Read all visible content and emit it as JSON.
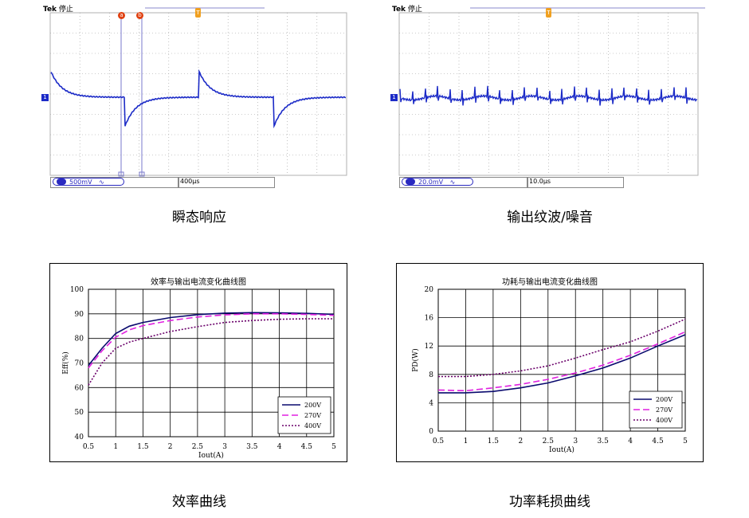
{
  "scope1": {
    "brand": "Tek",
    "state": "停止",
    "marker_a": "a",
    "marker_b": "b",
    "marker_t": "T",
    "channel": "1",
    "volts_div": "500mV",
    "coupling": "∿",
    "timebase": "400μs",
    "caption": "瞬态响应",
    "trace_color": "#1c2bc7"
  },
  "scope2": {
    "brand": "Tek",
    "state": "停止",
    "marker_t": "T",
    "channel": "1",
    "volts_div": "20.0mV",
    "coupling": "∿",
    "timebase": "10.0μs",
    "caption": "输出纹波/噪音",
    "trace_color": "#1c2bc7"
  },
  "chart_data": [
    {
      "type": "line",
      "title": "效率与输出电流变化曲线图",
      "xlabel": "Iout(A)",
      "ylabel": "Eff(%)",
      "xlim": [
        0.5,
        5
      ],
      "ylim": [
        40,
        100
      ],
      "x_ticks": [
        "0.5",
        "1",
        "1.5",
        "2",
        "2.5",
        "3",
        "3.5",
        "4",
        "4.5",
        "5"
      ],
      "y_ticks": [
        "40",
        "50",
        "60",
        "70",
        "80",
        "90",
        "100"
      ],
      "x": [
        0.5,
        0.75,
        1,
        1.25,
        1.5,
        2,
        2.5,
        3,
        3.5,
        4,
        4.5,
        5
      ],
      "series": [
        {
          "name": "200V",
          "values": [
            69,
            76,
            82,
            85,
            86.5,
            88.5,
            89.7,
            90.3,
            90.5,
            90.4,
            90.2,
            89.8
          ],
          "color": "#0a0a6e",
          "dash": "none"
        },
        {
          "name": "270V",
          "values": [
            68,
            75,
            80.5,
            83.5,
            85.2,
            87.3,
            88.7,
            89.6,
            90,
            90,
            89.8,
            89.4
          ],
          "color": "#e020e0",
          "dash": "8,4"
        },
        {
          "name": "400V",
          "values": [
            61,
            70,
            76,
            78.5,
            80,
            82.8,
            84.8,
            86.5,
            87.3,
            87.8,
            88,
            88
          ],
          "color": "#6a006a",
          "dash": "2,2"
        }
      ],
      "legend": "bottom-right",
      "grid": true,
      "caption": "效率曲线"
    },
    {
      "type": "line",
      "title": "功耗与输出电流变化曲线图",
      "xlabel": "Iout(A)",
      "ylabel": "PD(W)",
      "xlim": [
        0.5,
        5
      ],
      "ylim": [
        0,
        20
      ],
      "x_ticks": [
        "0.5",
        "1",
        "1.5",
        "2",
        "2.5",
        "3",
        "3.5",
        "4",
        "4.5",
        "5"
      ],
      "y_ticks": [
        "0",
        "4",
        "8",
        "12",
        "16",
        "20"
      ],
      "x": [
        0.5,
        1,
        1.5,
        2,
        2.5,
        3,
        3.5,
        4,
        4.5,
        5
      ],
      "series": [
        {
          "name": "200V",
          "values": [
            5.4,
            5.4,
            5.6,
            6.1,
            6.8,
            7.8,
            8.9,
            10.3,
            12,
            13.6
          ],
          "color": "#0a0a6e",
          "dash": "none"
        },
        {
          "name": "270V",
          "values": [
            5.8,
            5.7,
            6.1,
            6.6,
            7.3,
            8.2,
            9.3,
            10.7,
            12.3,
            14
          ],
          "color": "#e020e0",
          "dash": "8,4"
        },
        {
          "name": "400V",
          "values": [
            7.7,
            7.7,
            8,
            8.5,
            9.2,
            10.3,
            11.5,
            12.6,
            14.1,
            15.8
          ],
          "color": "#6a006a",
          "dash": "2,2"
        }
      ],
      "legend": "bottom-right",
      "grid": true,
      "caption": "功率耗损曲线"
    }
  ]
}
